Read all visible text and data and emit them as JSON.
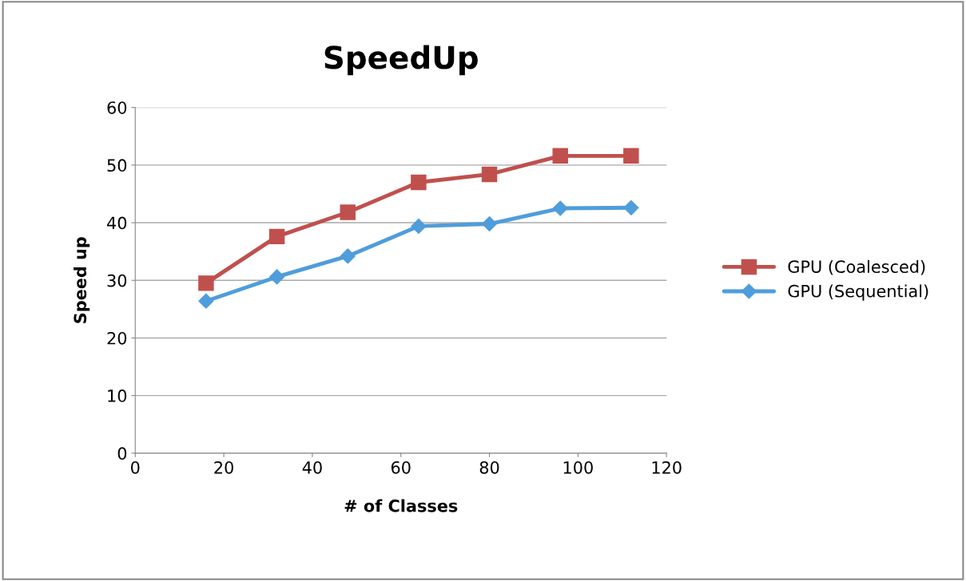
{
  "chart_data": {
    "type": "line",
    "title": "SpeedUp",
    "xlabel": "# of Classes",
    "ylabel": "Speed up",
    "xlim": [
      0,
      120
    ],
    "xticks": [
      0,
      20,
      40,
      60,
      80,
      100,
      120
    ],
    "ylim": [
      0,
      60
    ],
    "yticks": [
      0,
      10,
      20,
      30,
      40,
      50,
      60
    ],
    "grid": "y",
    "legend": "right",
    "line_style": "solid",
    "series": [
      {
        "name": "GPU (Coalesced)",
        "color": "#c0504d",
        "marker": "square",
        "x": [
          16,
          32,
          48,
          64,
          80,
          96,
          112
        ],
        "values": [
          29.5,
          37.6,
          41.8,
          47.0,
          48.4,
          51.6,
          51.6
        ]
      },
      {
        "name": "GPU (Sequential)",
        "color": "#4f9ddb",
        "marker": "diamond",
        "x": [
          16,
          32,
          48,
          64,
          80,
          96,
          112
        ],
        "values": [
          26.4,
          30.6,
          34.2,
          39.4,
          39.8,
          42.5,
          42.6
        ]
      }
    ]
  }
}
